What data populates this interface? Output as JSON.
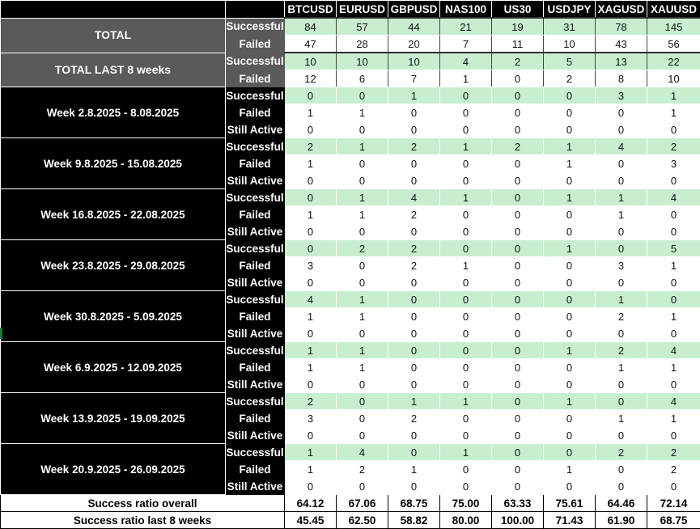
{
  "symbols": [
    "BTCUSD",
    "EURUSD",
    "GBPUSD",
    "NAS100",
    "US30",
    "USDJPY",
    "XAGUSD",
    "XAUUSD"
  ],
  "row_labels": {
    "successful": "Successful",
    "failed": "Failed",
    "still_active": "Still Active"
  },
  "total": {
    "label": "TOTAL",
    "successful": [
      "84",
      "57",
      "44",
      "21",
      "19",
      "31",
      "78",
      "145"
    ],
    "failed": [
      "47",
      "28",
      "20",
      "7",
      "11",
      "10",
      "43",
      "56"
    ]
  },
  "total_last8": {
    "label": "TOTAL LAST 8 weeks",
    "successful": [
      "10",
      "10",
      "10",
      "4",
      "2",
      "5",
      "13",
      "22"
    ],
    "failed": [
      "12",
      "6",
      "7",
      "1",
      "0",
      "2",
      "8",
      "10"
    ]
  },
  "weeks": [
    {
      "label": "Week 2.8.2025 - 8.08.2025",
      "successful": [
        "0",
        "0",
        "1",
        "0",
        "0",
        "0",
        "3",
        "1"
      ],
      "failed": [
        "1",
        "1",
        "0",
        "0",
        "0",
        "0",
        "0",
        "1"
      ],
      "still_active": [
        "0",
        "0",
        "0",
        "0",
        "0",
        "0",
        "0",
        "0"
      ]
    },
    {
      "label": "Week 9.8.2025 - 15.08.2025",
      "successful": [
        "2",
        "1",
        "2",
        "1",
        "2",
        "1",
        "4",
        "2"
      ],
      "failed": [
        "1",
        "0",
        "0",
        "0",
        "0",
        "1",
        "0",
        "3"
      ],
      "still_active": [
        "0",
        "0",
        "0",
        "0",
        "0",
        "0",
        "0",
        "0"
      ]
    },
    {
      "label": "Week 16.8.2025 - 22.08.2025",
      "successful": [
        "0",
        "1",
        "4",
        "1",
        "0",
        "1",
        "1",
        "4"
      ],
      "failed": [
        "1",
        "1",
        "2",
        "0",
        "0",
        "0",
        "1",
        "0"
      ],
      "still_active": [
        "0",
        "0",
        "0",
        "0",
        "0",
        "0",
        "0",
        "0"
      ]
    },
    {
      "label": "Week 23.8.2025 - 29.08.2025",
      "successful": [
        "0",
        "2",
        "2",
        "0",
        "0",
        "1",
        "0",
        "5"
      ],
      "failed": [
        "3",
        "0",
        "2",
        "1",
        "0",
        "0",
        "3",
        "1"
      ],
      "still_active": [
        "0",
        "0",
        "0",
        "0",
        "0",
        "0",
        "0",
        "0"
      ]
    },
    {
      "label": "Week 30.8.2025 - 5.09.2025",
      "successful": [
        "4",
        "1",
        "0",
        "0",
        "0",
        "0",
        "1",
        "0"
      ],
      "failed": [
        "1",
        "1",
        "0",
        "0",
        "0",
        "0",
        "2",
        "1"
      ],
      "still_active": [
        "0",
        "0",
        "0",
        "0",
        "0",
        "0",
        "0",
        "0"
      ]
    },
    {
      "label": "Week 6.9.2025 - 12.09.2025",
      "successful": [
        "1",
        "1",
        "0",
        "0",
        "0",
        "1",
        "2",
        "4"
      ],
      "failed": [
        "1",
        "1",
        "0",
        "0",
        "0",
        "0",
        "1",
        "1"
      ],
      "still_active": [
        "0",
        "0",
        "0",
        "0",
        "0",
        "0",
        "0",
        "0"
      ]
    },
    {
      "label": "Week 13.9.2025 - 19.09.2025",
      "successful": [
        "2",
        "0",
        "1",
        "1",
        "0",
        "1",
        "0",
        "4"
      ],
      "failed": [
        "3",
        "0",
        "2",
        "0",
        "0",
        "0",
        "1",
        "1"
      ],
      "still_active": [
        "0",
        "0",
        "0",
        "0",
        "0",
        "0",
        "0",
        "0"
      ]
    },
    {
      "label": "Week 20.9.2025 - 26.09.2025",
      "successful": [
        "1",
        "4",
        "0",
        "1",
        "0",
        "0",
        "2",
        "2"
      ],
      "failed": [
        "1",
        "2",
        "1",
        "0",
        "0",
        "1",
        "0",
        "2"
      ],
      "still_active": [
        "0",
        "0",
        "0",
        "0",
        "0",
        "0",
        "0",
        "0"
      ]
    }
  ],
  "ratio_overall": {
    "label": "Success ratio overall",
    "values": [
      "64.12",
      "67.06",
      "68.75",
      "75.00",
      "63.33",
      "75.61",
      "64.46",
      "72.14"
    ]
  },
  "ratio_last8": {
    "label": "Success ratio last 8 weeks",
    "values": [
      "45.45",
      "62.50",
      "58.82",
      "80.00",
      "100.00",
      "71.43",
      "61.90",
      "68.75"
    ]
  },
  "colors": {
    "success_fill": "#c7efcf",
    "header_black": "#000000",
    "total_gray": "#5a5a5a"
  }
}
